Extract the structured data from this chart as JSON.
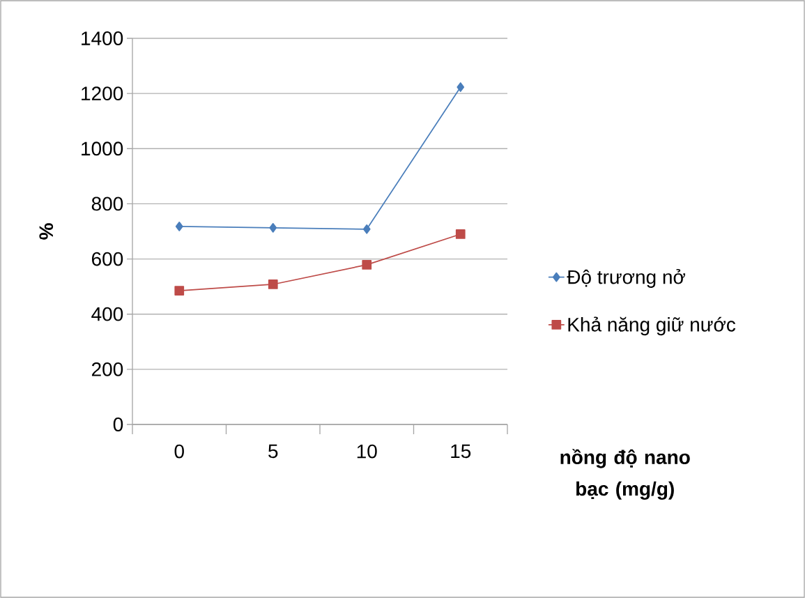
{
  "chart_data": {
    "type": "line",
    "xlabel": "nồng độ nano bạc (mg/g)",
    "ylabel": "%",
    "categories": [
      "0",
      "5",
      "10",
      "15"
    ],
    "series": [
      {
        "name": "Độ trương nở",
        "color": "#4a7ebb",
        "marker": "diamond",
        "values": [
          718,
          713,
          708,
          1223
        ]
      },
      {
        "name": "Khả năng giữ nước",
        "color": "#be4b48",
        "marker": "square",
        "values": [
          485,
          508,
          579,
          690
        ]
      }
    ],
    "ylim": [
      0,
      1400
    ],
    "yticks": [
      0,
      200,
      400,
      600,
      800,
      1000,
      1200,
      1400
    ],
    "grid": "y",
    "legend": "right"
  }
}
